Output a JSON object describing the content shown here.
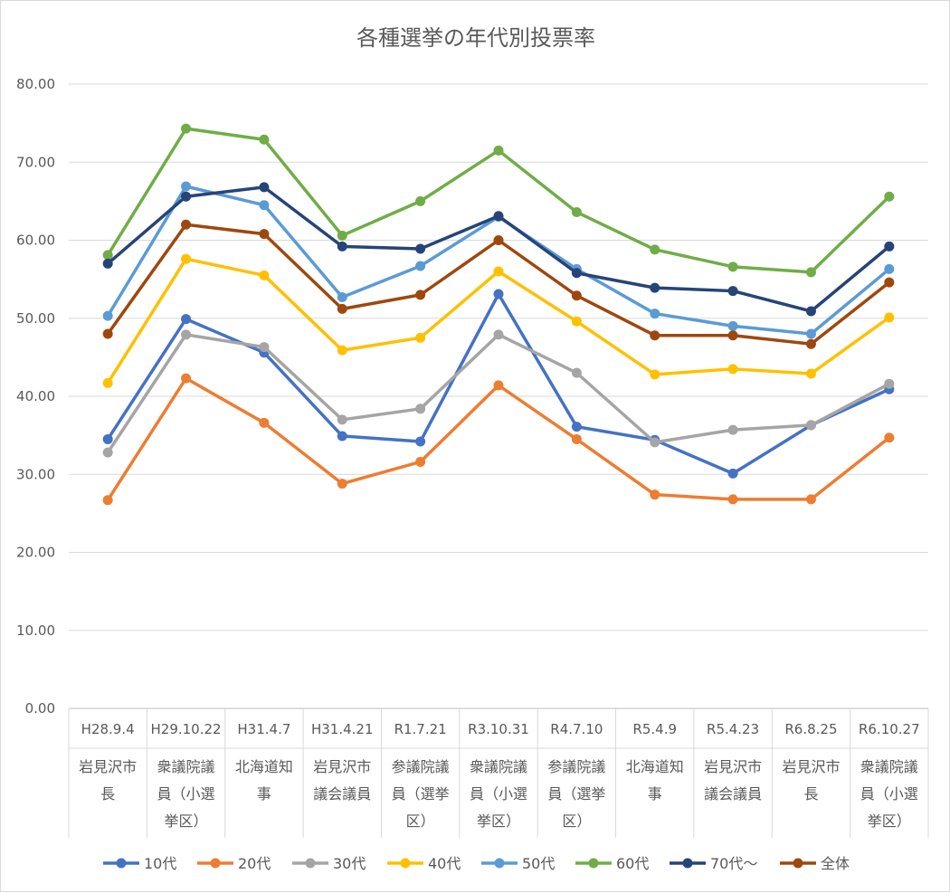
{
  "chart_data": {
    "type": "line",
    "title": "各種選挙の年代別投票率",
    "ylim": [
      0,
      80
    ],
    "yticks": [
      "0.00",
      "10.00",
      "20.00",
      "30.00",
      "40.00",
      "50.00",
      "60.00",
      "70.00",
      "80.00"
    ],
    "grid": true,
    "legend_position": "bottom",
    "categories": [
      {
        "date": "H28.9.4",
        "name": [
          "岩見沢市",
          "長"
        ]
      },
      {
        "date": "H29.10.22",
        "name": [
          "衆議院議",
          "員（小選",
          "挙区）"
        ]
      },
      {
        "date": "H31.4.7",
        "name": [
          "北海道知",
          "事"
        ]
      },
      {
        "date": "H31.4.21",
        "name": [
          "岩見沢市",
          "議会議員"
        ]
      },
      {
        "date": "R1.7.21",
        "name": [
          "参議院議",
          "員（選挙",
          "区）"
        ]
      },
      {
        "date": "R3.10.31",
        "name": [
          "衆議院議",
          "員（小選",
          "挙区）"
        ]
      },
      {
        "date": "R4.7.10",
        "name": [
          "参議院議",
          "員（選挙",
          "区）"
        ]
      },
      {
        "date": "R5.4.9",
        "name": [
          "北海道知",
          "事"
        ]
      },
      {
        "date": "R5.4.23",
        "name": [
          "岩見沢市",
          "議会議員"
        ]
      },
      {
        "date": "R6.8.25",
        "name": [
          "岩見沢市",
          "長"
        ]
      },
      {
        "date": "R6.10.27",
        "name": [
          "衆議院議",
          "員（小選",
          "挙区）"
        ]
      }
    ],
    "series": [
      {
        "name": "10代",
        "color": "#4472C4",
        "values": [
          34.5,
          49.9,
          45.6,
          34.9,
          34.2,
          53.1,
          36.1,
          34.4,
          30.1,
          36.3,
          40.9
        ]
      },
      {
        "name": "20代",
        "color": "#ED7D31",
        "values": [
          26.7,
          42.3,
          36.6,
          28.8,
          31.6,
          41.4,
          34.5,
          27.4,
          26.8,
          26.8,
          34.7
        ]
      },
      {
        "name": "30代",
        "color": "#A5A5A5",
        "values": [
          32.8,
          47.9,
          46.3,
          37.0,
          38.4,
          47.9,
          43.0,
          34.1,
          35.7,
          36.3,
          41.6
        ]
      },
      {
        "name": "40代",
        "color": "#FFC000",
        "values": [
          41.7,
          57.6,
          55.5,
          45.9,
          47.5,
          56.0,
          49.6,
          42.8,
          43.5,
          42.9,
          50.1
        ]
      },
      {
        "name": "50代",
        "color": "#5B9BD5",
        "values": [
          50.3,
          66.9,
          64.5,
          52.7,
          56.7,
          63.0,
          56.3,
          50.6,
          49.0,
          48.0,
          56.3
        ]
      },
      {
        "name": "60代",
        "color": "#70AD47",
        "values": [
          58.1,
          74.3,
          72.9,
          60.6,
          65.0,
          71.5,
          63.6,
          58.8,
          56.6,
          55.9,
          65.6
        ]
      },
      {
        "name": "70代～",
        "color": "#264478",
        "values": [
          57.0,
          65.6,
          66.8,
          59.2,
          58.9,
          63.1,
          55.8,
          53.9,
          53.5,
          50.9,
          59.2
        ]
      },
      {
        "name": "全体",
        "color": "#9E480E",
        "values": [
          48.0,
          62.0,
          60.8,
          51.2,
          53.0,
          60.0,
          52.9,
          47.8,
          47.8,
          46.7,
          54.6
        ]
      }
    ]
  }
}
